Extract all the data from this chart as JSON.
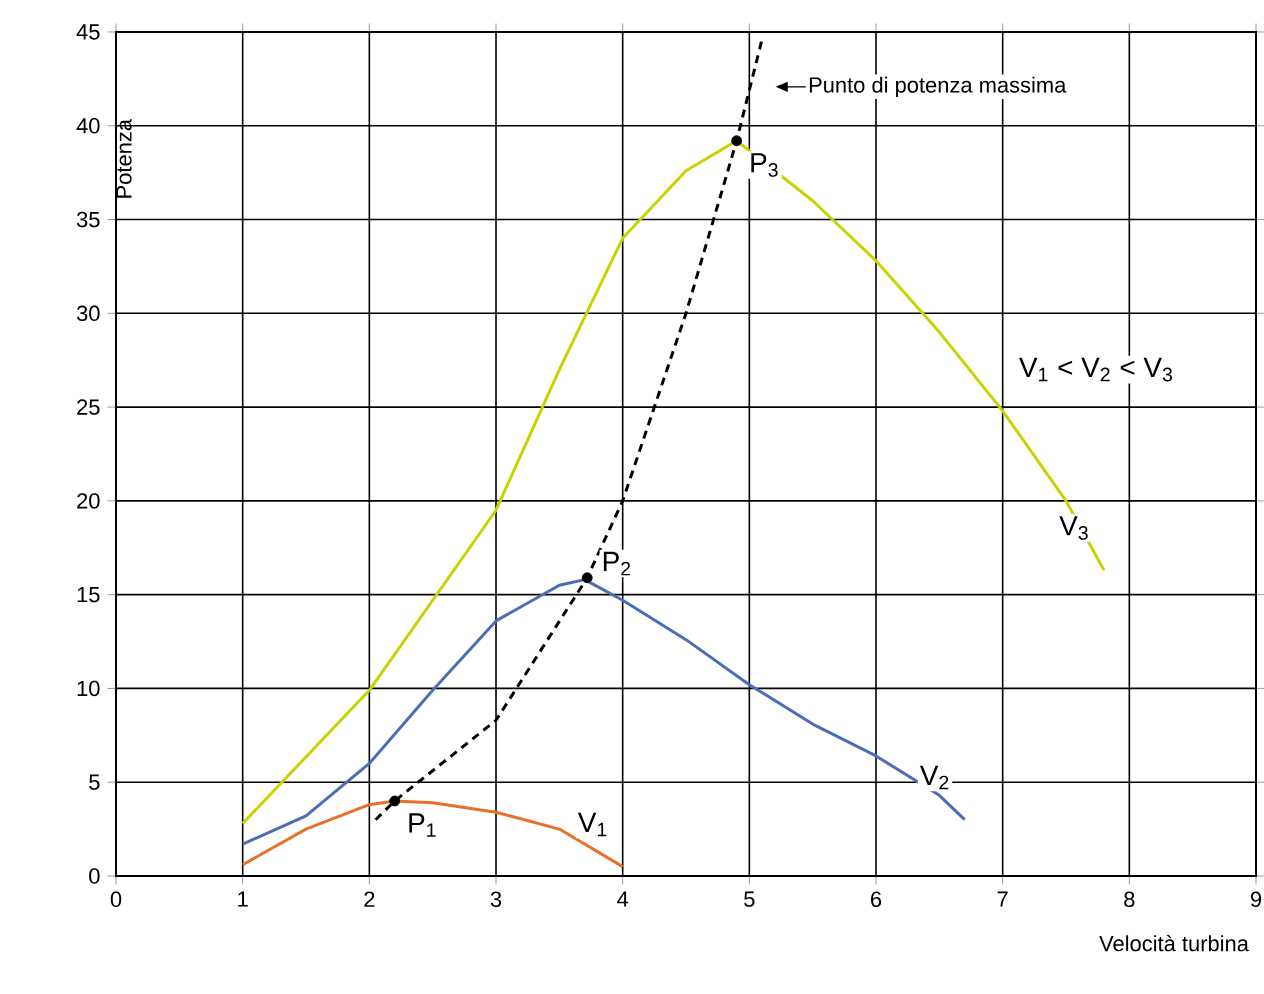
{
  "chart_data": {
    "type": "line",
    "xlabel": "Velocità turbina",
    "ylabel": "Potenza",
    "xlim": [
      0,
      9
    ],
    "ylim": [
      0,
      45
    ],
    "xticks": [
      0,
      1,
      2,
      3,
      4,
      5,
      6,
      7,
      8,
      9
    ],
    "yticks": [
      0,
      5,
      10,
      15,
      20,
      25,
      30,
      35,
      40,
      45
    ],
    "grid": true,
    "series": [
      {
        "name": "V$_{1}$",
        "color": "#e8702a",
        "x": [
          1,
          1.5,
          2,
          2.2,
          2.5,
          3,
          3.5,
          4
        ],
        "values": [
          0.6,
          2.5,
          3.8,
          4,
          3.9,
          3.4,
          2.5,
          0.5
        ]
      },
      {
        "name": "V$_{2}$",
        "color": "#4a6db5",
        "x": [
          1,
          1.5,
          2,
          2.5,
          3,
          3.5,
          3.7,
          4,
          4.5,
          5,
          5.5,
          6,
          6.5,
          6.7
        ],
        "values": [
          1.7,
          3.2,
          6,
          9.9,
          13.6,
          15.5,
          15.8,
          14.7,
          12.6,
          10.2,
          8.1,
          6.4,
          4.3,
          3.0
        ]
      },
      {
        "name": "V$_{3}$",
        "color": "#c8d400",
        "x": [
          1,
          2,
          3,
          3.5,
          4,
          4.5,
          4.9,
          5.5,
          6,
          6.5,
          7,
          7.5,
          7.8
        ],
        "values": [
          2.8,
          9.9,
          19.5,
          27,
          34,
          37.6,
          39.2,
          36,
          32.8,
          29,
          24.8,
          20,
          16.3
        ]
      },
      {
        "color": "#000000",
        "line_style": "dashed",
        "x": [
          2.05,
          2.2,
          3,
          3.72,
          4,
          4.5,
          4.9,
          5.1
        ],
        "values": [
          3,
          4,
          8.3,
          15.9,
          20,
          30,
          39.2,
          44.6
        ]
      },
      {
        "type": "scatter",
        "marker": "circle",
        "color": "#000000",
        "x": [
          2.2,
          3.72,
          4.9
        ],
        "values": [
          4,
          15.9,
          39.2
        ]
      }
    ],
    "annotations": [
      {
        "text": "P$_{1}$",
        "x": 2.2,
        "y": 4
      },
      {
        "text": "P$_{2}$",
        "x": 3.72,
        "y": 15.9
      },
      {
        "text": "P$_{3}$",
        "x": 4.9,
        "y": 39.2
      },
      "V$_{1}$ < V$_{2}$ < V$_{3}$",
      "Punto di potenza massima"
    ]
  }
}
